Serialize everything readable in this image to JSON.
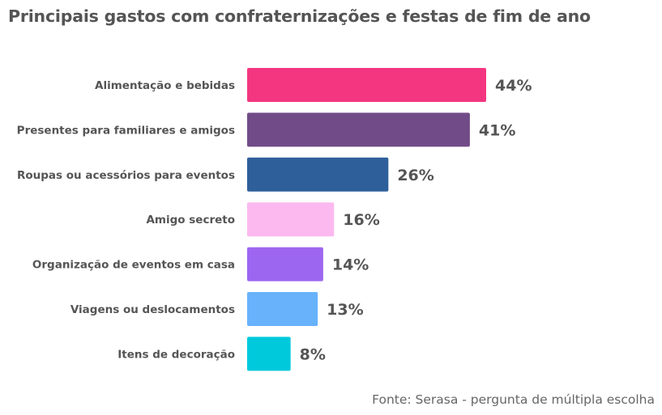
{
  "chart_data": {
    "type": "bar",
    "orientation": "horizontal",
    "title": "Principais gastos com confraternizações e festas de fim de ano",
    "categories": [
      "Alimentação e bebidas",
      "Presentes para familiares e amigos",
      "Roupas ou acessórios para eventos",
      "Amigo secreto",
      "Organização de eventos em casa",
      "Viagens ou deslocamentos",
      "Itens de decoração"
    ],
    "values": [
      44,
      41,
      26,
      16,
      14,
      13,
      8
    ],
    "value_labels": [
      "44%",
      "41%",
      "26%",
      "16%",
      "14%",
      "13%",
      "8%"
    ],
    "colors": [
      "#f43680",
      "#714b87",
      "#2e5f9b",
      "#fcb9f0",
      "#9c66f1",
      "#67b2fb",
      "#00c9dc"
    ],
    "xlabel": "",
    "ylabel": "",
    "xlim": [
      0,
      44
    ],
    "grid": false,
    "source": "Fonte: Serasa - pergunta de múltipla escolha"
  }
}
